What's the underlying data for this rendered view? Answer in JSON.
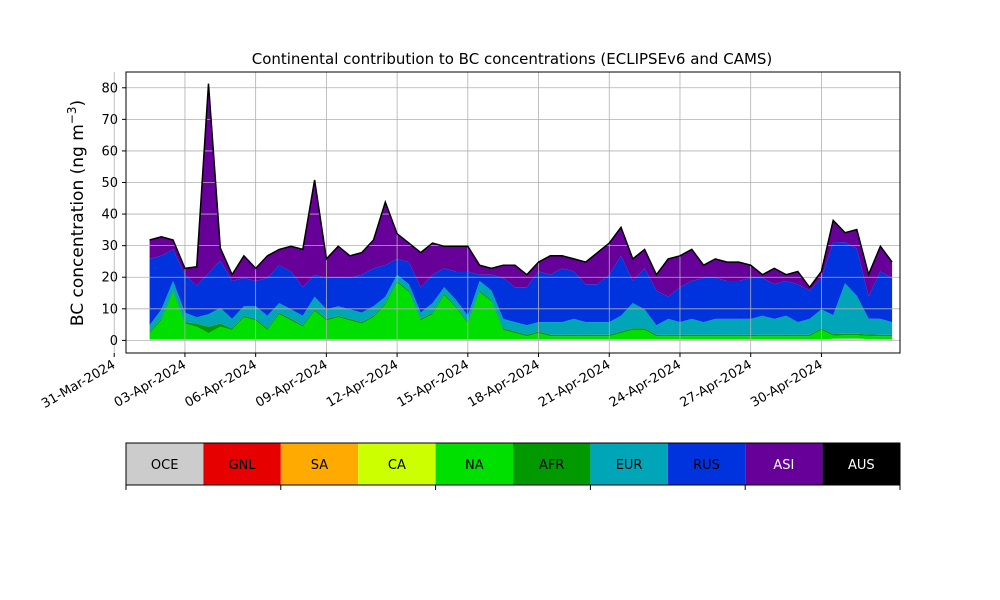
{
  "chart_data": {
    "type": "area",
    "stacked": true,
    "title": "Continental contribution to BC concentrations (ECLIPSEv6 and CAMS)",
    "ylabel": {
      "text": "BC concentration (ng m",
      "exponent": "−3",
      "close": ")"
    },
    "xlabel": "",
    "xlim": [
      "2024-03-31T12:00",
      "2024-05-03T08:00"
    ],
    "ylim": [
      -4,
      85
    ],
    "yticks": [
      0,
      10,
      20,
      30,
      40,
      50,
      60,
      70,
      80
    ],
    "xticks": [
      {
        "date": "2024-03-31",
        "label": "31-Mar-2024"
      },
      {
        "date": "2024-04-03",
        "label": "03-Apr-2024"
      },
      {
        "date": "2024-04-06",
        "label": "06-Apr-2024"
      },
      {
        "date": "2024-04-09",
        "label": "09-Apr-2024"
      },
      {
        "date": "2024-04-12",
        "label": "12-Apr-2024"
      },
      {
        "date": "2024-04-15",
        "label": "15-Apr-2024"
      },
      {
        "date": "2024-04-18",
        "label": "18-Apr-2024"
      },
      {
        "date": "2024-04-21",
        "label": "21-Apr-2024"
      },
      {
        "date": "2024-04-24",
        "label": "24-Apr-2024"
      },
      {
        "date": "2024-04-27",
        "label": "27-Apr-2024"
      },
      {
        "date": "2024-04-30",
        "label": "30-Apr-2024"
      }
    ],
    "grid": true,
    "legend_placement": "below",
    "legend": [
      {
        "name": "OCE",
        "color": "#cccccc",
        "text_color": "#000000"
      },
      {
        "name": "GNL",
        "color": "#e60000",
        "text_color": "#000000"
      },
      {
        "name": "SA",
        "color": "#ffaa00",
        "text_color": "#000000"
      },
      {
        "name": "CA",
        "color": "#ccff00",
        "text_color": "#000000"
      },
      {
        "name": "NA",
        "color": "#00e000",
        "text_color": "#000000"
      },
      {
        "name": "AFR",
        "color": "#009900",
        "text_color": "#000000"
      },
      {
        "name": "EUR",
        "color": "#00a6b8",
        "text_color": "#000000"
      },
      {
        "name": "RUS",
        "color": "#0033dd",
        "text_color": "#000000"
      },
      {
        "name": "ASI",
        "color": "#660099",
        "text_color": "#ffffff"
      },
      {
        "name": "AUS",
        "color": "#000000",
        "text_color": "#ffffff"
      }
    ],
    "x": [
      "2024-04-01T12:00",
      "2024-04-02T00:00",
      "2024-04-02T12:00",
      "2024-04-03T00:00",
      "2024-04-03T12:00",
      "2024-04-04T00:00",
      "2024-04-04T12:00",
      "2024-04-05T00:00",
      "2024-04-05T12:00",
      "2024-04-06T00:00",
      "2024-04-06T12:00",
      "2024-04-07T00:00",
      "2024-04-07T12:00",
      "2024-04-08T00:00",
      "2024-04-08T12:00",
      "2024-04-09T00:00",
      "2024-04-09T12:00",
      "2024-04-10T00:00",
      "2024-04-10T12:00",
      "2024-04-11T00:00",
      "2024-04-11T12:00",
      "2024-04-12T00:00",
      "2024-04-12T12:00",
      "2024-04-13T00:00",
      "2024-04-13T12:00",
      "2024-04-14T00:00",
      "2024-04-14T12:00",
      "2024-04-15T00:00",
      "2024-04-15T12:00",
      "2024-04-16T00:00",
      "2024-04-16T12:00",
      "2024-04-17T00:00",
      "2024-04-17T12:00",
      "2024-04-18T00:00",
      "2024-04-18T12:00",
      "2024-04-19T00:00",
      "2024-04-19T12:00",
      "2024-04-20T00:00",
      "2024-04-20T12:00",
      "2024-04-21T00:00",
      "2024-04-21T12:00",
      "2024-04-22T00:00",
      "2024-04-22T12:00",
      "2024-04-23T00:00",
      "2024-04-23T12:00",
      "2024-04-24T00:00",
      "2024-04-24T12:00",
      "2024-04-25T00:00",
      "2024-04-25T12:00",
      "2024-04-26T00:00",
      "2024-04-26T12:00",
      "2024-04-27T00:00",
      "2024-04-27T12:00",
      "2024-04-28T00:00",
      "2024-04-28T12:00",
      "2024-04-29T00:00",
      "2024-04-29T12:00",
      "2024-04-30T00:00",
      "2024-04-30T12:00",
      "2024-05-01T00:00",
      "2024-05-01T12:00",
      "2024-05-02T00:00",
      "2024-05-02T12:00",
      "2024-05-03T00:00"
    ],
    "series": [
      {
        "name": "OCE",
        "values": [
          0.3,
          0.3,
          0.3,
          0.3,
          0.3,
          0.3,
          0.3,
          0.3,
          0.3,
          0.3,
          0.3,
          0.3,
          0.3,
          0.3,
          0.3,
          0.3,
          0.3,
          0.3,
          0.3,
          0.3,
          0.3,
          0.3,
          0.3,
          0.3,
          0.3,
          0.3,
          0.3,
          0.3,
          0.3,
          0.3,
          0.3,
          0.3,
          0.3,
          0.3,
          0.3,
          0.3,
          0.3,
          0.3,
          0.3,
          0.3,
          0.3,
          0.3,
          0.3,
          0.3,
          0.3,
          0.3,
          0.3,
          0.3,
          0.3,
          0.3,
          0.3,
          0.3,
          0.3,
          0.3,
          0.3,
          0.3,
          0.3,
          0.3,
          0.5,
          0.6,
          0.6,
          0.4,
          0.3,
          0.3
        ]
      },
      {
        "name": "GNL",
        "values": [
          0,
          0,
          0,
          0,
          0,
          0,
          0,
          0,
          0,
          0,
          0,
          0,
          0,
          0,
          0,
          0,
          0,
          0,
          0,
          0,
          0,
          0,
          0,
          0,
          0,
          0,
          0,
          0,
          0,
          0,
          0,
          0,
          0,
          0,
          0,
          0,
          0,
          0,
          0,
          0,
          0,
          0,
          0,
          0,
          0,
          0,
          0,
          0,
          0,
          0,
          0,
          0,
          0,
          0,
          0,
          0,
          0,
          0,
          0,
          0,
          0,
          0,
          0,
          0
        ]
      },
      {
        "name": "SA",
        "values": [
          0,
          0,
          0,
          0,
          0,
          0,
          0,
          0,
          0,
          0,
          0,
          0,
          0,
          0,
          0,
          0,
          0,
          0,
          0,
          0,
          0,
          0,
          0,
          0,
          0,
          0,
          0,
          0,
          0,
          0,
          0,
          0,
          0,
          0,
          0,
          0,
          0,
          0,
          0,
          0,
          0,
          0,
          0,
          0,
          0,
          0,
          0,
          0,
          0,
          0,
          0,
          0,
          0,
          0,
          0,
          0,
          0,
          0,
          0,
          0,
          0,
          0,
          0,
          0
        ]
      },
      {
        "name": "CA",
        "values": [
          0,
          0,
          0,
          0,
          0,
          0,
          0,
          0,
          0,
          0,
          0,
          0,
          0,
          0,
          0,
          0,
          0,
          0,
          0,
          0,
          0,
          0,
          0,
          0,
          0,
          0,
          0,
          0,
          0,
          0,
          0,
          0,
          0,
          0,
          0,
          0,
          0,
          0,
          0,
          0,
          0,
          0,
          0,
          0,
          0,
          0,
          0,
          0,
          0,
          0,
          0,
          0,
          0,
          0,
          0,
          0,
          0,
          0,
          0,
          0,
          0,
          0,
          0,
          0
        ]
      },
      {
        "name": "NA",
        "values": [
          2,
          6,
          15,
          5,
          4,
          2,
          4,
          3,
          7,
          6,
          3,
          8,
          6,
          4,
          9,
          6,
          7,
          6,
          5,
          7,
          11,
          18,
          15,
          6,
          8,
          14,
          10,
          5,
          15,
          12,
          3,
          2,
          1,
          2,
          1,
          1,
          1,
          1,
          1,
          1,
          2,
          3,
          3,
          1,
          1,
          1,
          1,
          1,
          1,
          1,
          1,
          1,
          1,
          1,
          1,
          1,
          1,
          3,
          1,
          1,
          1,
          1,
          1,
          1
        ]
      },
      {
        "name": "AFR",
        "values": [
          0.5,
          0.5,
          0.5,
          0.5,
          1,
          2,
          1,
          0.5,
          0.5,
          0.5,
          0.5,
          0.5,
          0.5,
          0.5,
          0.5,
          0.5,
          0.5,
          0.5,
          0.5,
          0.5,
          0.5,
          0.5,
          0.5,
          0.5,
          0.5,
          0.5,
          0.5,
          0.5,
          0.5,
          0.5,
          0.5,
          0.5,
          0.5,
          0.5,
          0.5,
          0.5,
          0.5,
          0.5,
          0.5,
          0.5,
          0.5,
          0.5,
          0.5,
          0.5,
          0.5,
          0.5,
          0.5,
          0.5,
          0.5,
          0.5,
          0.5,
          0.5,
          0.5,
          0.5,
          0.5,
          0.5,
          0.5,
          0.5,
          0.5,
          0.5,
          0.5,
          0.5,
          0.5,
          0.5
        ]
      },
      {
        "name": "EUR",
        "values": [
          2,
          3,
          3,
          3,
          2,
          4,
          5,
          3,
          3,
          4,
          4,
          3,
          3,
          3,
          4,
          3,
          3,
          3,
          3,
          3,
          2,
          2,
          2,
          2,
          3,
          2,
          2,
          2,
          3,
          3,
          3,
          3,
          3,
          3,
          4,
          4,
          5,
          4,
          4,
          4,
          5,
          8,
          6,
          3,
          5,
          4,
          5,
          4,
          5,
          5,
          5,
          5,
          6,
          5,
          6,
          4,
          5,
          6,
          6,
          16,
          12,
          5,
          5,
          4
        ]
      },
      {
        "name": "RUS",
        "values": [
          21,
          17,
          10,
          12,
          10,
          13,
          15,
          12,
          9,
          8,
          12,
          12,
          12,
          9,
          7,
          10,
          9,
          10,
          12,
          12,
          10,
          5,
          7,
          8,
          9,
          6,
          9,
          14,
          2,
          5,
          13,
          11,
          12,
          16,
          15,
          17,
          15,
          12,
          12,
          15,
          19,
          7,
          13,
          11,
          7,
          11,
          12,
          14,
          13,
          12,
          12,
          13,
          12,
          11,
          11,
          12,
          9,
          10,
          23,
          13,
          15,
          7,
          15,
          14
        ]
      },
      {
        "name": "ASI",
        "values": [
          6,
          6,
          3,
          2,
          6,
          60,
          4,
          2,
          7,
          4,
          7,
          5,
          8,
          12,
          30,
          6,
          10,
          7,
          7,
          9,
          20,
          8,
          6,
          11,
          10,
          7,
          8,
          8,
          3,
          2,
          4,
          7,
          4,
          3,
          6,
          4,
          4,
          7,
          10,
          10,
          9,
          7,
          6,
          5,
          12,
          10,
          10,
          4,
          6,
          6,
          6,
          4,
          1,
          5,
          2,
          4,
          1,
          2,
          7,
          3,
          6,
          7,
          8,
          5
        ]
      },
      {
        "name": "AUS",
        "values": [
          0,
          0,
          0,
          0,
          0,
          0,
          0,
          0,
          0,
          0,
          0,
          0,
          0,
          0,
          0,
          0,
          0,
          0,
          0,
          0,
          0,
          0,
          0,
          0,
          0,
          0,
          0,
          0,
          0,
          0,
          0,
          0,
          0,
          0,
          0,
          0,
          0,
          0,
          0,
          0,
          0,
          0,
          0,
          0,
          0,
          0,
          0,
          0,
          0,
          0,
          0,
          0,
          0,
          0,
          0,
          0,
          0,
          0,
          0,
          0,
          0,
          0,
          0,
          0
        ]
      }
    ]
  }
}
